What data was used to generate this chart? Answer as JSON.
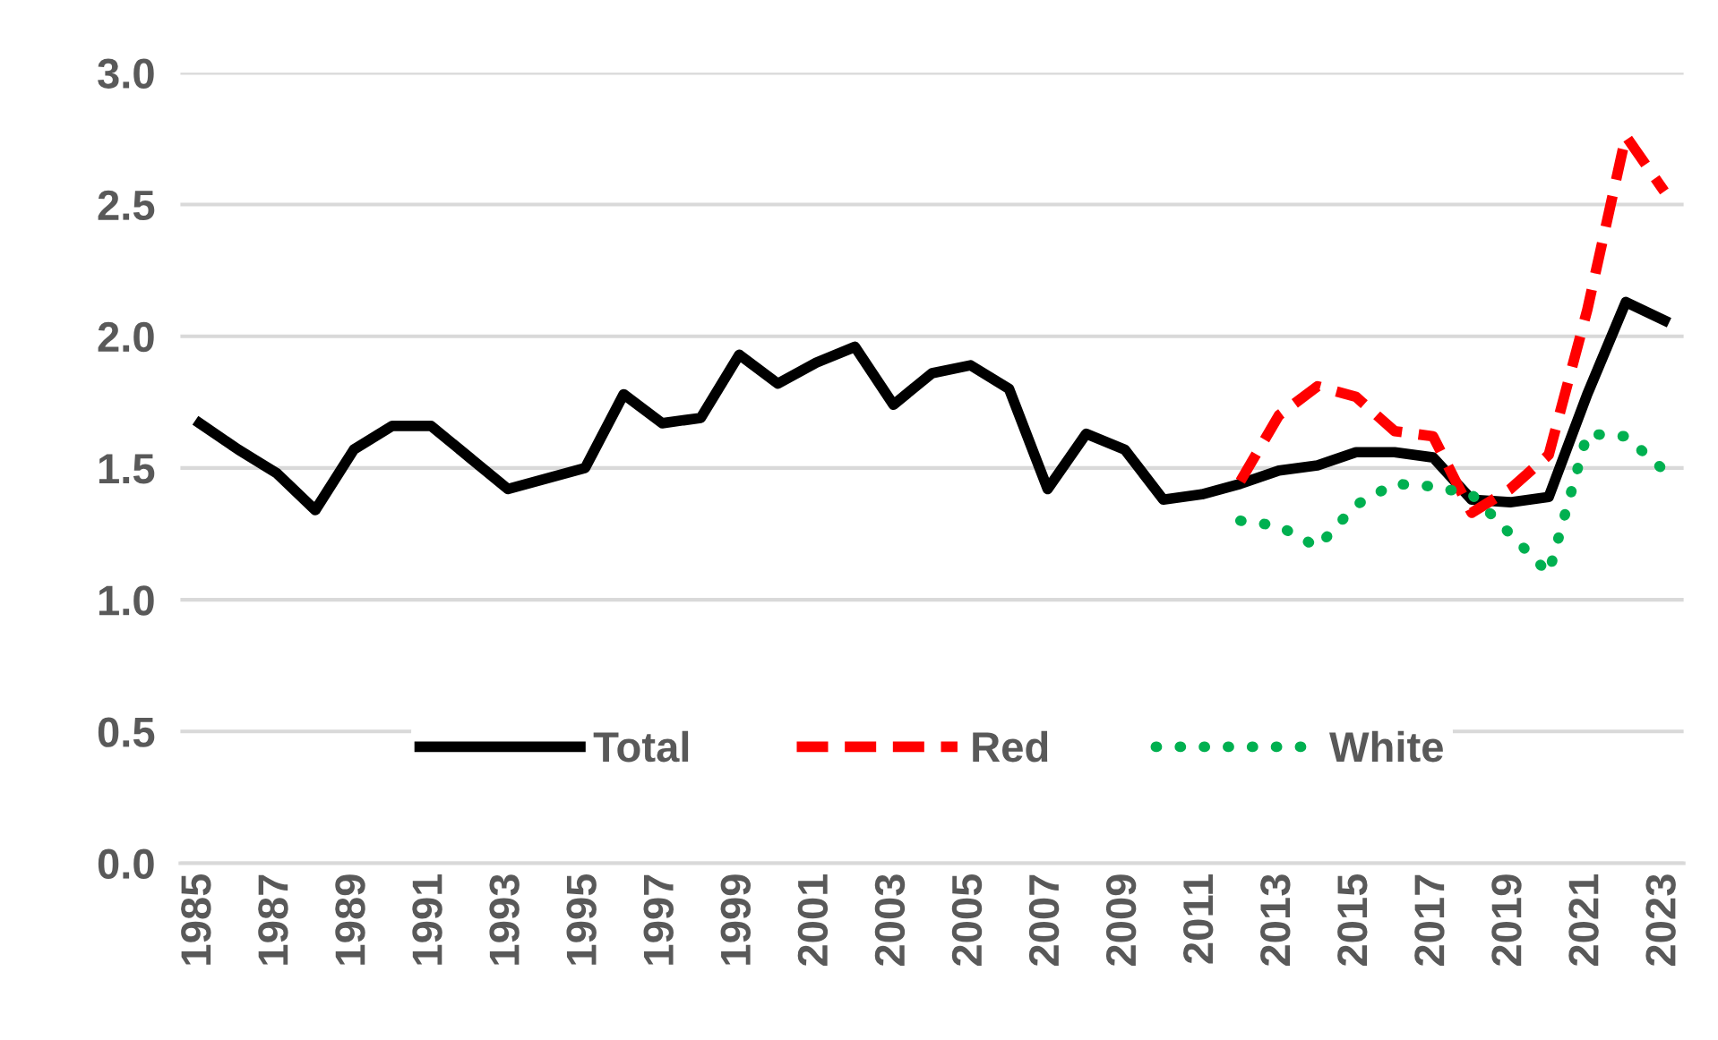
{
  "chart_data": {
    "type": "line",
    "categories": [
      "1985",
      null,
      "1987",
      null,
      "1989",
      null,
      "1991",
      null,
      "1993",
      null,
      "1995",
      null,
      "1997",
      null,
      "1999",
      null,
      "2001",
      null,
      "2003",
      null,
      "2005",
      null,
      "2007",
      null,
      "2009",
      null,
      "2011",
      null,
      "2013",
      null,
      "2015",
      null,
      "2017",
      null,
      "2019",
      null,
      "2021",
      null,
      "2023"
    ],
    "series": [
      {
        "name": "Total",
        "color": "#000000",
        "line_style": "solid",
        "values": [
          1.67,
          1.57,
          1.48,
          1.34,
          1.57,
          1.66,
          1.66,
          1.54,
          1.42,
          1.46,
          1.5,
          1.78,
          1.67,
          1.69,
          1.93,
          1.82,
          1.9,
          1.96,
          1.74,
          1.86,
          1.89,
          1.8,
          1.42,
          1.63,
          1.57,
          1.38,
          1.4,
          1.44,
          1.49,
          1.51,
          1.56,
          1.56,
          1.54,
          1.38,
          1.37,
          1.39,
          1.78,
          2.13,
          2.06
        ]
      },
      {
        "name": "Red",
        "color": "#ff0000",
        "line_style": "dashed",
        "values": [
          null,
          null,
          null,
          null,
          null,
          null,
          null,
          null,
          null,
          null,
          null,
          null,
          null,
          null,
          null,
          null,
          null,
          null,
          null,
          null,
          null,
          null,
          null,
          null,
          null,
          null,
          null,
          1.45,
          1.7,
          1.81,
          1.77,
          1.64,
          1.62,
          1.33,
          1.42,
          1.55,
          2.1,
          2.76,
          2.55
        ]
      },
      {
        "name": "White",
        "color": "#00b050",
        "line_style": "dotted",
        "values": [
          null,
          null,
          null,
          null,
          null,
          null,
          null,
          null,
          null,
          null,
          null,
          null,
          null,
          null,
          null,
          null,
          null,
          null,
          null,
          null,
          null,
          null,
          null,
          null,
          null,
          null,
          null,
          1.3,
          1.28,
          1.2,
          1.36,
          1.44,
          1.43,
          1.4,
          1.25,
          1.1,
          1.63,
          1.62,
          1.49
        ]
      }
    ],
    "ylim": [
      0,
      3.0
    ],
    "yticks": [
      {
        "value": 0,
        "label": "0.0"
      },
      {
        "value": 0.5,
        "label": "0.5"
      },
      {
        "value": 1.0,
        "label": "1.0"
      },
      {
        "value": 1.5,
        "label": "1.5"
      },
      {
        "value": 2.0,
        "label": "2.0"
      },
      {
        "value": 2.5,
        "label": "2.5"
      },
      {
        "value": 3.0,
        "label": "3.0"
      }
    ],
    "grid": "y",
    "legend": "bottom",
    "marker": "none"
  }
}
